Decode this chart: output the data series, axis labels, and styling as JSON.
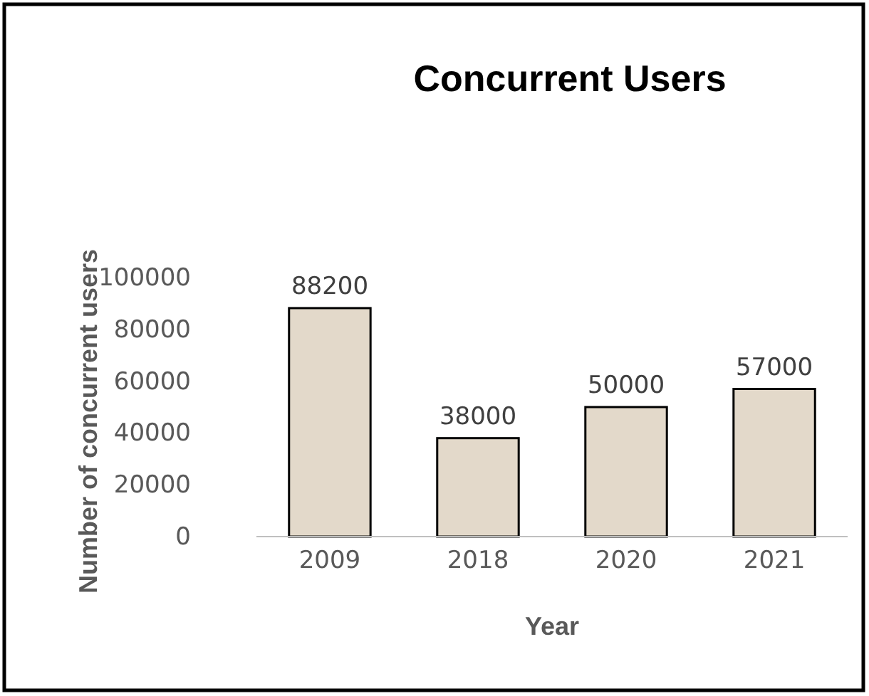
{
  "chart_data": {
    "type": "bar",
    "title": "Concurrent Users",
    "xlabel": "Year",
    "ylabel": "Number of concurrent users",
    "categories": [
      "2009",
      "2018",
      "2020",
      "2021"
    ],
    "values": [
      88200,
      38000,
      50000,
      57000
    ],
    "color": "#e3d9ca",
    "ylim": [
      0,
      100000
    ],
    "yticks": [
      0,
      20000,
      40000,
      60000,
      80000,
      100000
    ],
    "grid": false,
    "data_labels": true
  }
}
